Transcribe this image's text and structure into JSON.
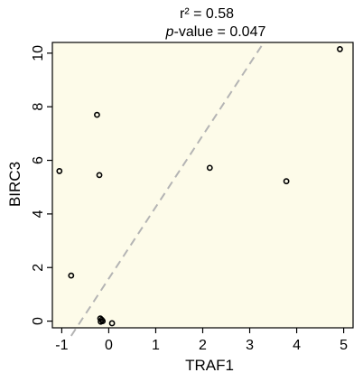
{
  "chart_data": {
    "type": "scatter",
    "title_lines": [
      {
        "prefix": "",
        "text": "r² = 0.58"
      },
      {
        "prefix": "p",
        "text": "-value = 0.047"
      }
    ],
    "xlabel": "TRAF1",
    "ylabel": "BIRC3",
    "xlim": [
      -1.2,
      5.2
    ],
    "ylim": [
      -0.25,
      10.4
    ],
    "x_ticks": [
      -1,
      0,
      1,
      2,
      3,
      4,
      5
    ],
    "x_tick_labels": [
      "-1",
      "0",
      "1",
      "2",
      "3",
      "4",
      "5"
    ],
    "y_ticks": [
      0,
      2,
      4,
      6,
      8,
      10
    ],
    "y_tick_labels": [
      "0",
      "2",
      "4",
      "6",
      "8",
      "10"
    ],
    "grid": false,
    "background_color": "#fdfbe9",
    "point_color": "#000000",
    "trend_line_color": "#b4b4b4",
    "trend_line": {
      "x": [
        -0.8,
        3.3
      ],
      "y": [
        -0.55,
        10.4
      ]
    },
    "points": [
      {
        "x": -1.05,
        "y": 5.6
      },
      {
        "x": -0.8,
        "y": 1.7
      },
      {
        "x": -0.25,
        "y": 7.7
      },
      {
        "x": -0.2,
        "y": 5.45
      },
      {
        "x": -0.18,
        "y": 0.1
      },
      {
        "x": -0.15,
        "y": 0.05
      },
      {
        "x": -0.13,
        "y": 0.0
      },
      {
        "x": -0.17,
        "y": -0.02
      },
      {
        "x": 0.07,
        "y": -0.08
      },
      {
        "x": 2.15,
        "y": 5.72
      },
      {
        "x": 3.78,
        "y": 5.22
      },
      {
        "x": 4.92,
        "y": 10.15
      }
    ]
  }
}
